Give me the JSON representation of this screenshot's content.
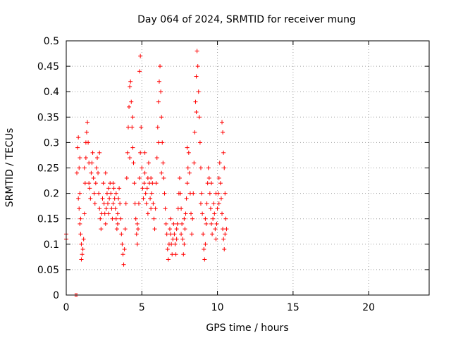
{
  "chart_data": {
    "type": "scatter",
    "title": "Day 064 of 2024, SRMTID for receiver mung",
    "xlabel": "GPS time / hours",
    "ylabel": "SRMTID / TECUs",
    "xlim": [
      0,
      24
    ],
    "ylim": [
      0,
      0.5
    ],
    "grid": true,
    "marker": "+",
    "x_ticks": [
      {
        "value": 0,
        "label": "0"
      },
      {
        "value": 5,
        "label": "5"
      },
      {
        "value": 10,
        "label": "10"
      },
      {
        "value": 15,
        "label": "15"
      },
      {
        "value": 20,
        "label": "20"
      }
    ],
    "y_ticks": [
      {
        "value": 0,
        "label": "0"
      },
      {
        "value": 0.05,
        "label": "0.05"
      },
      {
        "value": 0.1,
        "label": "0.1"
      },
      {
        "value": 0.15,
        "label": "0.15"
      },
      {
        "value": 0.2,
        "label": "0.2"
      },
      {
        "value": 0.25,
        "label": "0.25"
      },
      {
        "value": 0.3,
        "label": "0.3"
      },
      {
        "value": 0.35,
        "label": "0.35"
      },
      {
        "value": 0.4,
        "label": "0.4"
      },
      {
        "value": 0.45,
        "label": "0.45"
      },
      {
        "value": 0.5,
        "label": "0.5"
      }
    ],
    "series": [
      {
        "color": "#ff0000",
        "points": [
          [
            0.0,
            0.12
          ],
          [
            0.0,
            0.11
          ],
          [
            0.6,
            0.0
          ],
          [
            0.7,
            0.0
          ],
          [
            0.7,
            0.24
          ],
          [
            0.75,
            0.29
          ],
          [
            0.8,
            0.31
          ],
          [
            0.85,
            0.25
          ],
          [
            0.9,
            0.2
          ],
          [
            0.95,
            0.15
          ],
          [
            0.8,
            0.19
          ],
          [
            0.85,
            0.17
          ],
          [
            0.9,
            0.14
          ],
          [
            0.95,
            0.12
          ],
          [
            1.0,
            0.1
          ],
          [
            1.05,
            0.08
          ],
          [
            1.0,
            0.07
          ],
          [
            1.1,
            0.09
          ],
          [
            1.15,
            0.11
          ],
          [
            1.2,
            0.16
          ],
          [
            1.25,
            0.22
          ],
          [
            1.3,
            0.27
          ],
          [
            1.35,
            0.32
          ],
          [
            1.4,
            0.34
          ],
          [
            1.45,
            0.3
          ],
          [
            1.5,
            0.26
          ],
          [
            1.55,
            0.21
          ],
          [
            1.6,
            0.19
          ],
          [
            1.65,
            0.24
          ],
          [
            1.7,
            0.26
          ],
          [
            1.75,
            0.28
          ],
          [
            1.8,
            0.23
          ],
          [
            1.85,
            0.2
          ],
          [
            1.9,
            0.18
          ],
          [
            1.95,
            0.22
          ],
          [
            2.0,
            0.25
          ],
          [
            2.05,
            0.27
          ],
          [
            2.1,
            0.24
          ],
          [
            2.15,
            0.2
          ],
          [
            2.2,
            0.17
          ],
          [
            2.25,
            0.15
          ],
          [
            2.3,
            0.13
          ],
          [
            2.35,
            0.16
          ],
          [
            2.4,
            0.19
          ],
          [
            2.45,
            0.22
          ],
          [
            2.5,
            0.18
          ],
          [
            2.55,
            0.16
          ],
          [
            2.6,
            0.14
          ],
          [
            2.65,
            0.17
          ],
          [
            2.7,
            0.2
          ],
          [
            2.75,
            0.18
          ],
          [
            2.8,
            0.16
          ],
          [
            2.85,
            0.19
          ],
          [
            2.9,
            0.22
          ],
          [
            2.95,
            0.2
          ],
          [
            3.0,
            0.17
          ],
          [
            3.05,
            0.15
          ],
          [
            3.1,
            0.18
          ],
          [
            3.15,
            0.21
          ],
          [
            3.2,
            0.19
          ],
          [
            3.25,
            0.17
          ],
          [
            3.3,
            0.15
          ],
          [
            3.35,
            0.13
          ],
          [
            3.4,
            0.16
          ],
          [
            3.45,
            0.19
          ],
          [
            3.5,
            0.21
          ],
          [
            3.55,
            0.18
          ],
          [
            3.6,
            0.15
          ],
          [
            3.65,
            0.12
          ],
          [
            3.7,
            0.1
          ],
          [
            3.75,
            0.08
          ],
          [
            3.8,
            0.06
          ],
          [
            3.85,
            0.09
          ],
          [
            3.9,
            0.13
          ],
          [
            3.95,
            0.18
          ],
          [
            4.0,
            0.23
          ],
          [
            4.05,
            0.28
          ],
          [
            4.1,
            0.33
          ],
          [
            4.15,
            0.37
          ],
          [
            4.2,
            0.41
          ],
          [
            4.25,
            0.42
          ],
          [
            4.3,
            0.38
          ],
          [
            4.35,
            0.33
          ],
          [
            4.4,
            0.29
          ],
          [
            4.45,
            0.26
          ],
          [
            4.5,
            0.22
          ],
          [
            4.55,
            0.18
          ],
          [
            4.6,
            0.15
          ],
          [
            4.65,
            0.12
          ],
          [
            4.7,
            0.1
          ],
          [
            4.75,
            0.13
          ],
          [
            4.8,
            0.18
          ],
          [
            4.85,
            0.23
          ],
          [
            4.9,
            0.28
          ],
          [
            4.95,
            0.33
          ],
          [
            4.85,
            0.44
          ],
          [
            4.9,
            0.47
          ],
          [
            5.0,
            0.25
          ],
          [
            5.05,
            0.21
          ],
          [
            5.1,
            0.19
          ],
          [
            5.15,
            0.22
          ],
          [
            5.2,
            0.24
          ],
          [
            5.25,
            0.2
          ],
          [
            5.3,
            0.18
          ],
          [
            5.35,
            0.21
          ],
          [
            5.4,
            0.23
          ],
          [
            5.45,
            0.26
          ],
          [
            5.5,
            0.22
          ],
          [
            5.55,
            0.19
          ],
          [
            5.6,
            0.17
          ],
          [
            5.65,
            0.2
          ],
          [
            5.7,
            0.22
          ],
          [
            5.75,
            0.18
          ],
          [
            5.8,
            0.15
          ],
          [
            5.85,
            0.13
          ],
          [
            5.9,
            0.17
          ],
          [
            5.95,
            0.22
          ],
          [
            6.0,
            0.27
          ],
          [
            6.05,
            0.33
          ],
          [
            6.1,
            0.38
          ],
          [
            6.15,
            0.42
          ],
          [
            6.2,
            0.45
          ],
          [
            6.25,
            0.4
          ],
          [
            6.3,
            0.35
          ],
          [
            6.35,
            0.3
          ],
          [
            6.4,
            0.26
          ],
          [
            6.45,
            0.23
          ],
          [
            6.5,
            0.2
          ],
          [
            6.55,
            0.17
          ],
          [
            6.6,
            0.14
          ],
          [
            6.65,
            0.12
          ],
          [
            6.7,
            0.09
          ],
          [
            6.75,
            0.07
          ],
          [
            6.8,
            0.1
          ],
          [
            6.85,
            0.13
          ],
          [
            6.9,
            0.12
          ],
          [
            6.95,
            0.1
          ],
          [
            7.0,
            0.08
          ],
          [
            7.05,
            0.11
          ],
          [
            7.1,
            0.14
          ],
          [
            7.15,
            0.12
          ],
          [
            7.2,
            0.1
          ],
          [
            7.25,
            0.08
          ],
          [
            7.3,
            0.11
          ],
          [
            7.35,
            0.14
          ],
          [
            7.4,
            0.17
          ],
          [
            7.45,
            0.2
          ],
          [
            7.5,
            0.23
          ],
          [
            7.55,
            0.2
          ],
          [
            7.6,
            0.17
          ],
          [
            7.65,
            0.14
          ],
          [
            7.7,
            0.11
          ],
          [
            7.75,
            0.08
          ],
          [
            7.8,
            0.1
          ],
          [
            7.85,
            0.13
          ],
          [
            7.9,
            0.16
          ],
          [
            7.95,
            0.19
          ],
          [
            8.0,
            0.22
          ],
          [
            8.05,
            0.25
          ],
          [
            8.1,
            0.28
          ],
          [
            8.15,
            0.24
          ],
          [
            8.2,
            0.2
          ],
          [
            8.25,
            0.16
          ],
          [
            8.3,
            0.12
          ],
          [
            8.35,
            0.15
          ],
          [
            8.4,
            0.2
          ],
          [
            8.45,
            0.26
          ],
          [
            8.5,
            0.32
          ],
          [
            8.55,
            0.38
          ],
          [
            8.6,
            0.43
          ],
          [
            8.65,
            0.48
          ],
          [
            8.7,
            0.45
          ],
          [
            8.75,
            0.4
          ],
          [
            8.8,
            0.35
          ],
          [
            8.85,
            0.3
          ],
          [
            8.9,
            0.25
          ],
          [
            8.95,
            0.2
          ],
          [
            9.0,
            0.16
          ],
          [
            9.05,
            0.12
          ],
          [
            9.1,
            0.09
          ],
          [
            9.15,
            0.07
          ],
          [
            9.2,
            0.1
          ],
          [
            9.25,
            0.14
          ],
          [
            9.3,
            0.18
          ],
          [
            9.35,
            0.22
          ],
          [
            9.4,
            0.25
          ],
          [
            9.45,
            0.23
          ],
          [
            9.5,
            0.2
          ],
          [
            9.55,
            0.17
          ],
          [
            9.6,
            0.14
          ],
          [
            9.65,
            0.12
          ],
          [
            9.7,
            0.15
          ],
          [
            9.75,
            0.18
          ],
          [
            9.8,
            0.16
          ],
          [
            9.85,
            0.13
          ],
          [
            9.9,
            0.11
          ],
          [
            9.95,
            0.14
          ],
          [
            10.0,
            0.17
          ],
          [
            10.05,
            0.2
          ],
          [
            10.1,
            0.23
          ],
          [
            10.15,
            0.26
          ],
          [
            10.2,
            0.22
          ],
          [
            10.25,
            0.19
          ],
          [
            10.3,
            0.16
          ],
          [
            10.35,
            0.13
          ],
          [
            10.4,
            0.11
          ],
          [
            10.45,
            0.09
          ],
          [
            10.5,
            0.12
          ],
          [
            10.55,
            0.15
          ],
          [
            10.6,
            0.13
          ],
          [
            10.3,
            0.34
          ],
          [
            10.35,
            0.32
          ],
          [
            10.4,
            0.28
          ],
          [
            10.45,
            0.25
          ],
          [
            1.2,
            0.25
          ],
          [
            1.3,
            0.3
          ],
          [
            2.2,
            0.28
          ],
          [
            2.6,
            0.24
          ],
          [
            3.1,
            0.22
          ],
          [
            3.4,
            0.14
          ],
          [
            4.2,
            0.27
          ],
          [
            4.4,
            0.35
          ],
          [
            5.2,
            0.28
          ],
          [
            5.6,
            0.23
          ],
          [
            6.1,
            0.3
          ],
          [
            6.3,
            0.24
          ],
          [
            6.9,
            0.15
          ],
          [
            7.3,
            0.13
          ],
          [
            7.8,
            0.15
          ],
          [
            8.0,
            0.29
          ],
          [
            8.6,
            0.36
          ],
          [
            9.2,
            0.15
          ],
          [
            9.6,
            0.22
          ],
          [
            10.1,
            0.18
          ],
          [
            10.5,
            0.2
          ],
          [
            0.9,
            0.27
          ],
          [
            1.5,
            0.22
          ],
          [
            2.8,
            0.21
          ],
          [
            3.3,
            0.2
          ],
          [
            4.7,
            0.14
          ],
          [
            5.4,
            0.16
          ],
          [
            7.6,
            0.12
          ],
          [
            8.9,
            0.18
          ],
          [
            9.9,
            0.2
          ]
        ]
      }
    ]
  }
}
